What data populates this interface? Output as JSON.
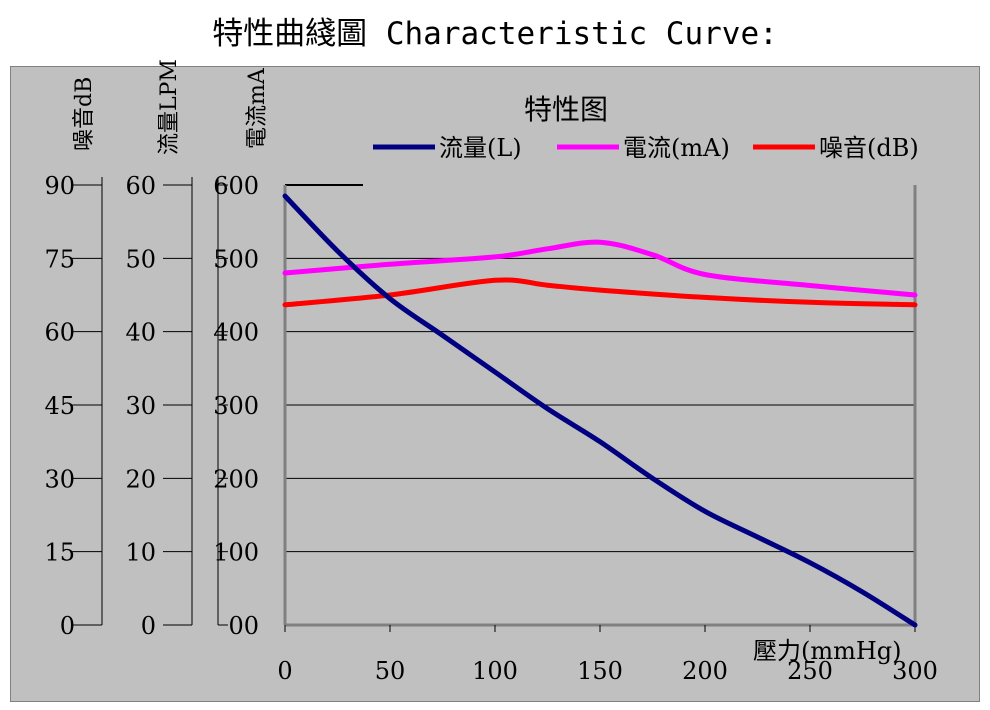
{
  "page": {
    "title": "特性曲綫圖 Characteristic Curve:"
  },
  "chart_data": {
    "type": "line",
    "title": "特性图",
    "xlabel": "壓力(mmHg)",
    "x_ticks": [
      0,
      50,
      100,
      150,
      200,
      250,
      300
    ],
    "xlim": [
      0,
      300
    ],
    "y_axes": [
      {
        "id": "current",
        "label": "電流mA",
        "range": [
          0,
          600
        ],
        "tick_values": [
          0,
          100,
          200,
          300,
          400,
          500,
          600
        ],
        "tick_labels": [
          "00",
          "100",
          "200",
          "300",
          "400",
          "500",
          "600"
        ]
      },
      {
        "id": "flow",
        "label": "流量LPM",
        "range": [
          0,
          60
        ],
        "tick_values": [
          0,
          10,
          20,
          30,
          40,
          50,
          60
        ],
        "tick_labels": [
          "0",
          "10",
          "20",
          "30",
          "40",
          "50",
          "60"
        ]
      },
      {
        "id": "noise",
        "label": "噪音dB",
        "range": [
          0,
          90
        ],
        "tick_values": [
          0,
          15,
          30,
          45,
          60,
          75,
          90
        ],
        "tick_labels": [
          "0",
          "15",
          "30",
          "45",
          "60",
          "75",
          "90"
        ]
      }
    ],
    "grid": true,
    "legend_position": "top-right",
    "series": [
      {
        "name": "流量(L)",
        "axis": "flow",
        "color": "#000080",
        "x": [
          0,
          25,
          50,
          75,
          100,
          125,
          150,
          175,
          200,
          225,
          250,
          275,
          300
        ],
        "values": [
          58.5,
          51,
          44.5,
          39.5,
          34.5,
          29.5,
          25,
          20,
          15.5,
          12,
          8.5,
          4.5,
          0
        ]
      },
      {
        "name": "電流(mA)",
        "axis": "current",
        "color": "#ff00ff",
        "x": [
          0,
          50,
          100,
          125,
          150,
          175,
          200,
          250,
          300
        ],
        "values": [
          480,
          492,
          502,
          513,
          522,
          505,
          478,
          463,
          450
        ]
      },
      {
        "name": "噪音(dB)",
        "axis": "noise",
        "color": "#ff0000",
        "x": [
          0,
          50,
          100,
          125,
          150,
          200,
          250,
          300
        ],
        "values": [
          65.5,
          67.5,
          70.5,
          69.5,
          68.5,
          67,
          66,
          65.5
        ]
      }
    ]
  }
}
